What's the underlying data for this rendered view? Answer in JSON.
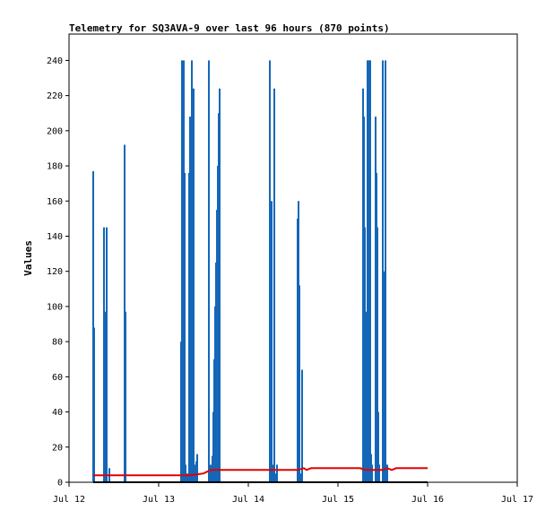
{
  "chart_data": {
    "type": "bar",
    "title": "Telemetry for SQ3AVA-9 over last 96 hours (870 points)",
    "xlabel": "",
    "ylabel": "Values",
    "ylim": [
      0,
      255
    ],
    "xlim": [
      0,
      5
    ],
    "yticks": [
      0,
      20,
      40,
      60,
      80,
      100,
      120,
      140,
      160,
      180,
      200,
      220,
      240
    ],
    "xticks": [
      {
        "value": 0,
        "label": "Jul 12"
      },
      {
        "value": 1,
        "label": "Jul 13"
      },
      {
        "value": 2,
        "label": "Jul 14"
      },
      {
        "value": 3,
        "label": "Jul 15"
      },
      {
        "value": 4,
        "label": "Jul 16"
      },
      {
        "value": 5,
        "label": "Jul 17"
      }
    ],
    "grid": false,
    "legend": "none",
    "colors": {
      "bars": "#1467b8",
      "line": "#e00000",
      "baseline": "#000000"
    },
    "series": [
      {
        "kind": "bars",
        "x": [
          0.27,
          0.28,
          0.39,
          0.4,
          0.42,
          0.45,
          0.62,
          0.63,
          1.25,
          1.26,
          1.27,
          1.28,
          1.29,
          1.3,
          1.32,
          1.34,
          1.35,
          1.36,
          1.37,
          1.38,
          1.39,
          1.4,
          1.41,
          1.42,
          1.43,
          1.56,
          1.58,
          1.6,
          1.61,
          1.62,
          1.63,
          1.64,
          1.65,
          1.66,
          1.67,
          1.68,
          2.24,
          2.25,
          2.26,
          2.27,
          2.29,
          2.3,
          2.32,
          2.55,
          2.56,
          2.57,
          2.58,
          2.6,
          3.28,
          3.29,
          3.3,
          3.31,
          3.32,
          3.33,
          3.34,
          3.35,
          3.36,
          3.37,
          3.38,
          3.42,
          3.43,
          3.44,
          3.45,
          3.46,
          3.5,
          3.51,
          3.53,
          3.55
        ],
        "values": [
          177,
          88,
          145,
          97,
          145,
          8,
          192,
          97,
          80,
          240,
          208,
          240,
          176,
          10,
          5,
          176,
          208,
          208,
          240,
          16,
          224,
          5,
          10,
          12,
          16,
          240,
          10,
          15,
          40,
          70,
          100,
          125,
          155,
          180,
          210,
          224,
          240,
          8,
          160,
          10,
          224,
          5,
          10,
          150,
          160,
          112,
          5,
          64,
          224,
          208,
          145,
          97,
          10,
          240,
          240,
          240,
          240,
          16,
          10,
          208,
          176,
          145,
          40,
          10,
          240,
          120,
          240,
          10
        ]
      },
      {
        "kind": "line",
        "x": [
          0.27,
          1.25,
          1.35,
          1.5,
          1.58,
          2.2,
          2.3,
          2.55,
          2.62,
          2.65,
          2.7,
          3.25,
          3.3,
          3.4,
          3.5,
          3.55,
          3.6,
          3.65,
          4.0
        ],
        "values": [
          4,
          4,
          4,
          5,
          7,
          7,
          7,
          7,
          8,
          7,
          8,
          8,
          7,
          7,
          7,
          8,
          7,
          8,
          8
        ]
      },
      {
        "kind": "baseline",
        "x": [
          0.27,
          4.0
        ],
        "values": [
          0,
          0
        ]
      }
    ]
  }
}
